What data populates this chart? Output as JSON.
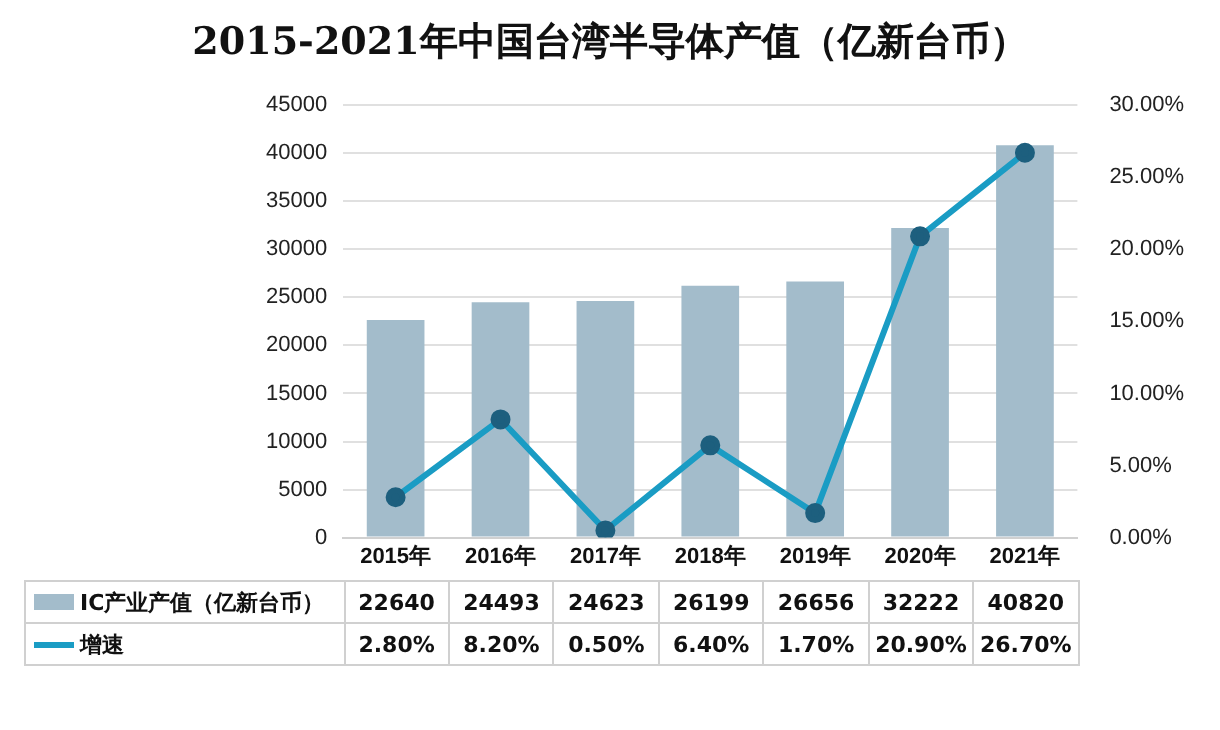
{
  "chart_data": {
    "type": "bar",
    "title": "2015-2021年中国台湾半导体产值（亿新台币）",
    "categories": [
      "2015年",
      "2016年",
      "2017年",
      "2018年",
      "2019年",
      "2020年",
      "2021年"
    ],
    "series": [
      {
        "name": "IC产业产值（亿新台币）",
        "color": "#a3bccb",
        "values": [
          22640,
          24493,
          24623,
          26199,
          26656,
          32222,
          40820
        ],
        "value_labels": [
          "22640",
          "24493",
          "24623",
          "26199",
          "26656",
          "32222",
          "40820"
        ]
      },
      {
        "name": "增速",
        "type": "line",
        "axis": "y2",
        "color": "#1a9cc4",
        "values": [
          2.8,
          8.2,
          0.5,
          6.4,
          1.7,
          20.9,
          26.7
        ],
        "value_labels": [
          "2.80%",
          "8.20%",
          "0.50%",
          "6.40%",
          "1.70%",
          "20.90%",
          "26.70%"
        ]
      }
    ],
    "ylim": [
      0,
      45000
    ],
    "yticks": [
      0,
      5000,
      10000,
      15000,
      20000,
      25000,
      30000,
      35000,
      40000,
      45000
    ],
    "y2lim": [
      0,
      30
    ],
    "y2ticks": [
      {
        "value": 0,
        "label": "0.00%"
      },
      {
        "value": 5,
        "label": "5.00%"
      },
      {
        "value": 10,
        "label": "10.00%"
      },
      {
        "value": 15,
        "label": "15.00%"
      },
      {
        "value": 20,
        "label": "20.00%"
      },
      {
        "value": 25,
        "label": "25.00%"
      },
      {
        "value": 30,
        "label": "30.00%"
      }
    ],
    "grid": "y",
    "legend": "bottom",
    "marker": "circle",
    "line_style": "solid"
  }
}
